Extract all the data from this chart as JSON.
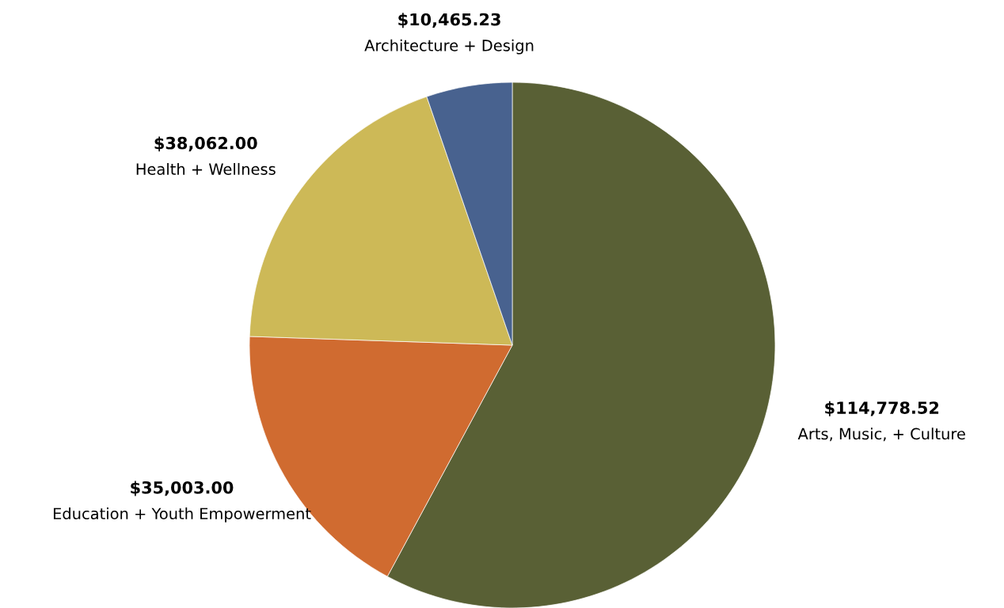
{
  "chart_data": {
    "type": "pie",
    "categories": [
      "Arts, Music, + Culture",
      "Education + Youth Empowerment",
      "Health + Wellness",
      "Architecture + Design"
    ],
    "values": [
      114778.52,
      35003.0,
      38062.0,
      10465.23
    ],
    "value_labels": [
      "$114,778.52",
      "$35,003.00",
      "$38,062.00",
      "$10,465.23"
    ],
    "colors": [
      "#596035",
      "#d06b30",
      "#cdb957",
      "#48628f"
    ],
    "legend": false
  }
}
